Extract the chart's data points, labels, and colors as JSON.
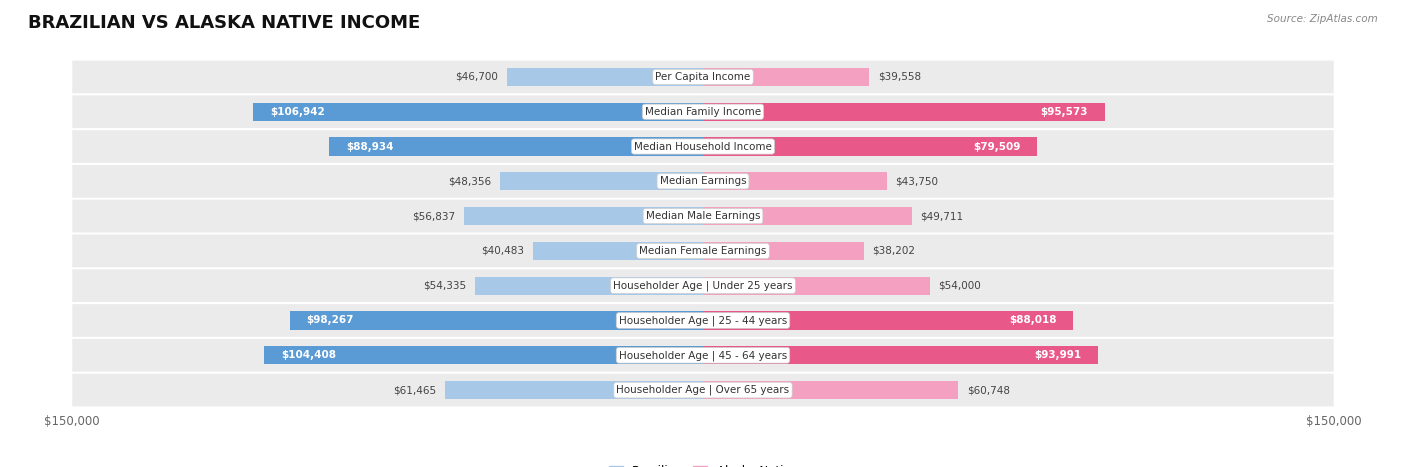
{
  "title": "BRAZILIAN VS ALASKA NATIVE INCOME",
  "source": "Source: ZipAtlas.com",
  "categories": [
    "Per Capita Income",
    "Median Family Income",
    "Median Household Income",
    "Median Earnings",
    "Median Male Earnings",
    "Median Female Earnings",
    "Householder Age | Under 25 years",
    "Householder Age | 25 - 44 years",
    "Householder Age | 45 - 64 years",
    "Householder Age | Over 65 years"
  ],
  "brazilian_values": [
    46700,
    106942,
    88934,
    48356,
    56837,
    40483,
    54335,
    98267,
    104408,
    61465
  ],
  "alaska_native_values": [
    39558,
    95573,
    79509,
    43750,
    49711,
    38202,
    54000,
    88018,
    93991,
    60748
  ],
  "brazilian_labels": [
    "$46,700",
    "$106,942",
    "$88,934",
    "$48,356",
    "$56,837",
    "$40,483",
    "$54,335",
    "$98,267",
    "$104,408",
    "$61,465"
  ],
  "alaska_native_labels": [
    "$39,558",
    "$95,573",
    "$79,509",
    "$43,750",
    "$49,711",
    "$38,202",
    "$54,000",
    "$88,018",
    "$93,991",
    "$60,748"
  ],
  "max_value": 150000,
  "brazilian_color_light": "#a8c8e8",
  "brazilian_color_dark": "#5b9bd5",
  "alaska_native_color_light": "#f4a0c0",
  "alaska_native_color_dark": "#e8598a",
  "row_bg_color": "#ebebeb",
  "title_fontsize": 13,
  "label_fontsize": 7.5,
  "category_fontsize": 7.5,
  "legend_fontsize": 8.5,
  "background_color": "#ffffff",
  "inside_threshold": 70000
}
